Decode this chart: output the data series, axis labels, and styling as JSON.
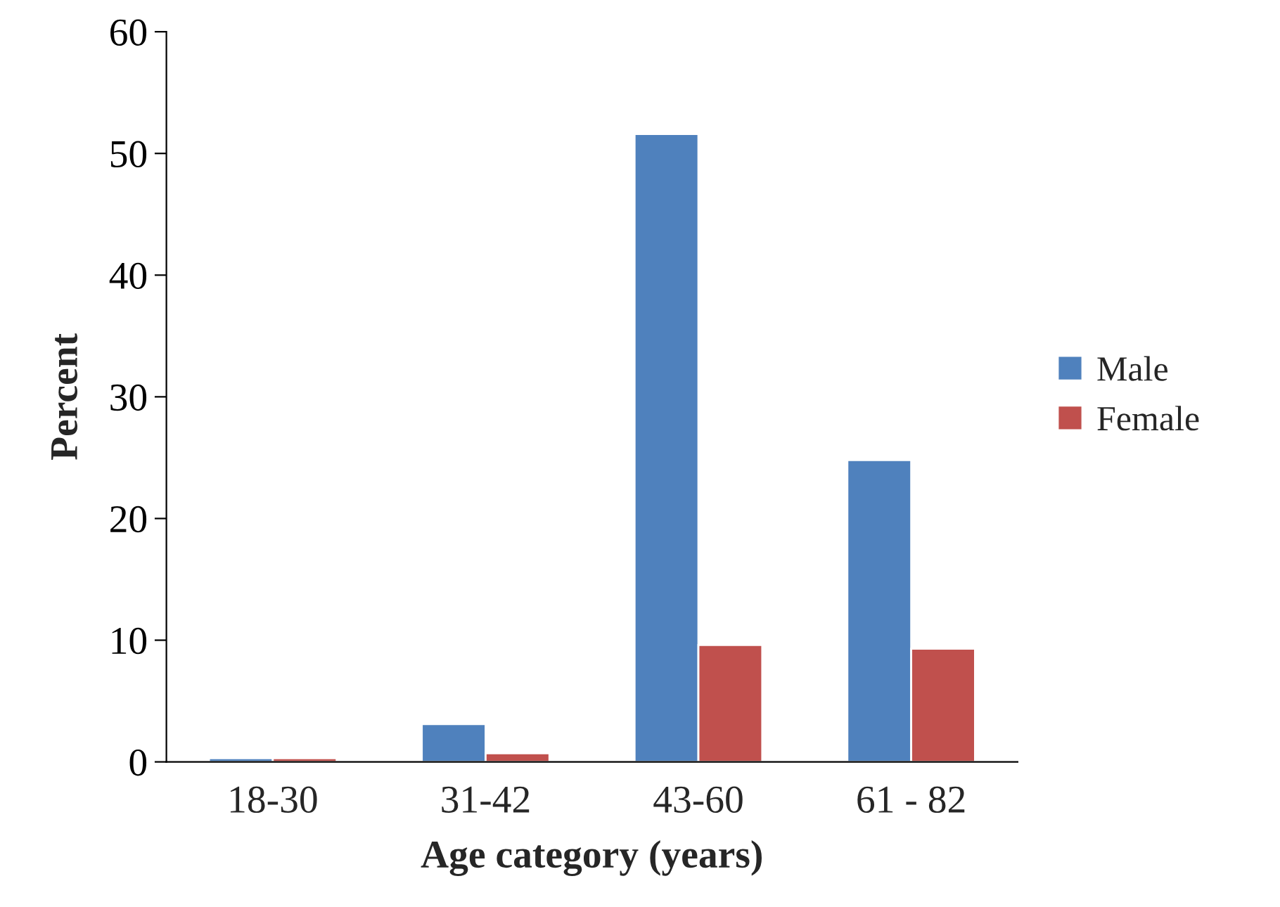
{
  "chart_data": {
    "type": "bar",
    "xlabel": "Age category (years)",
    "ylabel": "Percent",
    "categories": [
      "18-30",
      "31-42",
      "43-60",
      "61 - 82"
    ],
    "series": [
      {
        "name": "Male",
        "color": "#4f81bd",
        "values": [
          0.3,
          3.1,
          51.6,
          24.8
        ]
      },
      {
        "name": "Female",
        "color": "#c0504d",
        "values": [
          0.3,
          0.7,
          9.6,
          9.3
        ]
      }
    ],
    "ylim": [
      0,
      60
    ],
    "yticks": [
      0,
      10,
      20,
      30,
      40,
      50,
      60
    ],
    "grid": false,
    "legend": "right"
  }
}
